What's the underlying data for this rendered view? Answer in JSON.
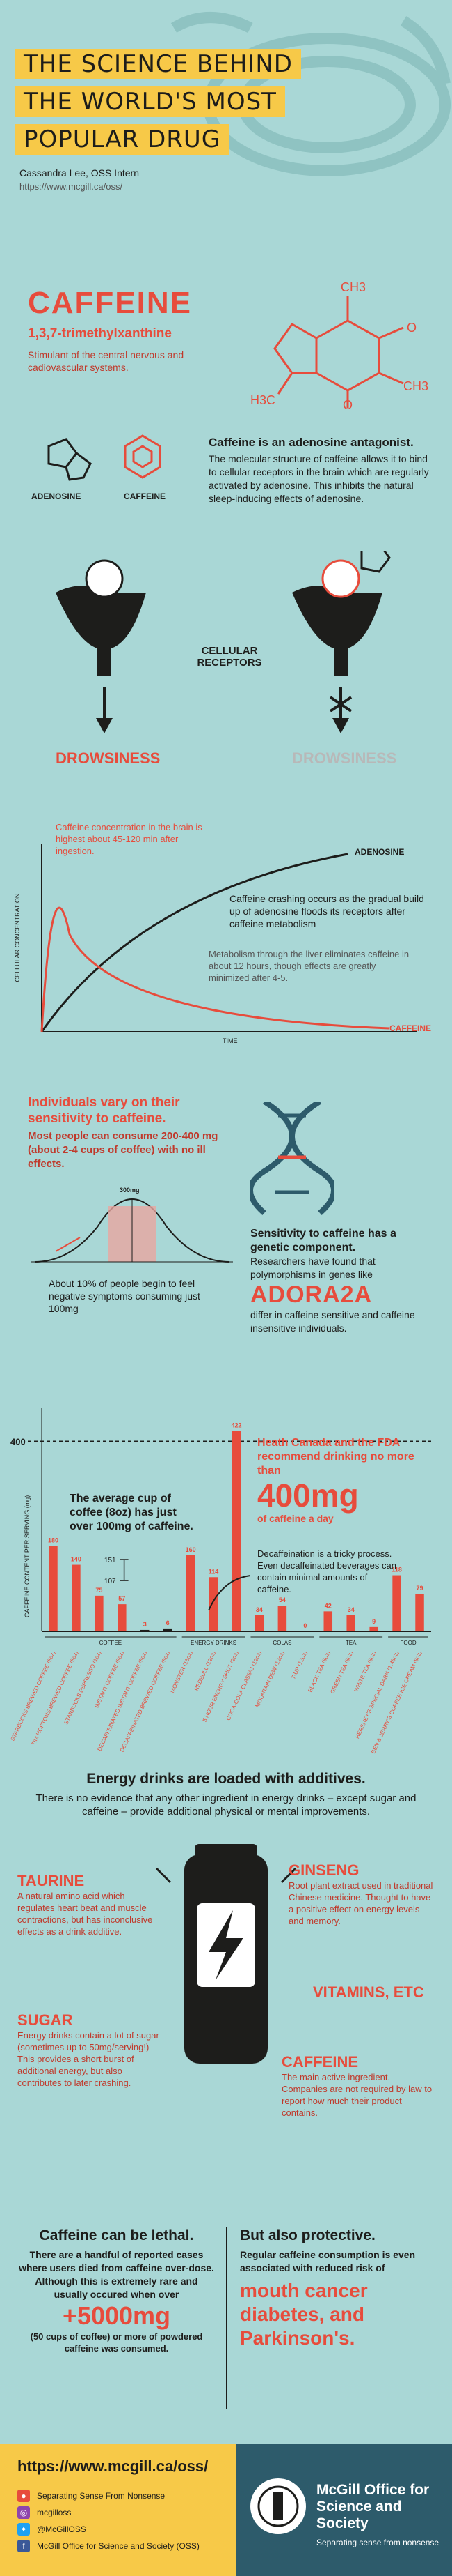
{
  "header": {
    "title_lines": [
      "THE SCIENCE BEHIND",
      "THE WORLD'S MOST",
      "POPULAR DRUG"
    ],
    "author": "Cassandra Lee, OSS Intern",
    "url": "https://www.mcgill.ca/oss/"
  },
  "caffeine_intro": {
    "title": "CAFFEINE",
    "chemical_name": "1,3,7-trimethylxanthine",
    "description": "Stimulant of the central nervous and cadiovascular systems.",
    "molecule_labels": {
      "ch3_top": "CH3",
      "ch3_right": "CH3",
      "h3c_left": "H3C",
      "n": "N",
      "o": "O"
    }
  },
  "antagonist": {
    "adenosine_label": "ADENOSINE",
    "caffeine_label": "CAFFEINE",
    "heading": "Caffeine is an adenosine antagonist.",
    "body": "The molecular structure of caffeine allows it to bind to cellular receptors in the brain which are regularly activated by adenosine. This inhibits the natural sleep-inducing effects of adenosine.",
    "receptors_label": "CELLULAR RECEPTORS",
    "drowsiness_left": "DROWSINESS",
    "drowsiness_right": "DROWSINESS"
  },
  "concentration_chart": {
    "peak_note": "Caffeine concentration in the brain is highest about 45-120 min after ingestion.",
    "crash_note": "Caffeine crashing occurs as the gradual build up of adenosine floods its receptors after caffeine metabolism",
    "metabolism_note": "Metabolism through the liver eliminates caffeine in about 12 hours, though effects are greatly minimized after 4-5.",
    "ylabel": "CELLULAR CONCENTRATION",
    "xlabel": "TIME",
    "series": [
      {
        "name": "ADENOSINE",
        "color": "#1d1d1b"
      },
      {
        "name": "CAFFEINE",
        "color": "#e74c3c"
      }
    ]
  },
  "sensitivity": {
    "heading": "Individuals vary on their sensitivity to caffeine.",
    "body": "Most people can consume 200-400 mg (about 2-4 cups of coffee) with no ill effects.",
    "curve_label": "300mg",
    "low_note": "About 10% of people begin to feel negative symptoms consuming just 100mg",
    "genetic_heading": "Sensitivity to caffeine has a genetic component.",
    "genetic_body": "Researchers have found that polymorphisms in genes like",
    "gene": "ADORA2A",
    "gene_tail": "differ in caffeine sensitive and caffeine insensitive individuals."
  },
  "chart_data": {
    "type": "bar",
    "ylabel": "CAFFEINE CONTENT PER SERVING (mg)",
    "reference_line": 400,
    "ylim": [
      0,
      440
    ],
    "categories": [
      "STARBUCKS BREWED COFFEE (8oz)",
      "TIM HORTONS BREWED COFFEE (8oz)",
      "STARBUCKS ESPRESSO (1oz)",
      "INSTANT COFFEE (8oz)",
      "DECAFFEINATED INSTANT COFFEE (8oz)",
      "DECAFFEINATED BREWED COFFEE (8oz)",
      "MONSTER (16oz)",
      "REDBULL (12oz)",
      "5 HOUR ENERGY SHOT (2oz)",
      "COCA-COLA CLASSIC (12oz)",
      "MOUNTAIN DEW (12oz)",
      "7-UP (12oz)",
      "BLACK TEA (8oz)",
      "GREEN TEA (8oz)",
      "WHITE TEA (8oz)",
      "HERSHEY'S SPECIAL DARK (1.45oz)",
      "BEN & JERRY'S COFFEE ICE CREAM (8oz)"
    ],
    "values": [
      180,
      140,
      75,
      57,
      3,
      6,
      160,
      114,
      422,
      34,
      54,
      0,
      42,
      34,
      9,
      118,
      79
    ],
    "value_labels": [
      "180",
      "140",
      "75",
      "57",
      "3",
      "6",
      "160",
      "114",
      "422",
      "34",
      "54",
      "0",
      "42",
      "34",
      "9",
      "118",
      "79"
    ],
    "groups": [
      {
        "name": "COFFEE",
        "from": 0,
        "to": 5
      },
      {
        "name": "ENERGY DRINKS",
        "from": 6,
        "to": 8
      },
      {
        "name": "COLAS",
        "from": 9,
        "to": 11
      },
      {
        "name": "TEA",
        "from": 12,
        "to": 14
      },
      {
        "name": "FOOD",
        "from": 15,
        "to": 16
      }
    ],
    "average_cup": {
      "label": "The average cup of coffee (8oz) has just over 100mg of caffeine.",
      "low": 107,
      "high": 151
    },
    "health_canada_note": "Heath Canada and the FDA recommend drinking no more than",
    "limit": "400mg",
    "limit_suffix": "of caffeine a day",
    "decaf_note": "Decaffeination is a tricky process. Even decaffeinated beverages can contain minimal amounts of caffeine.",
    "y_tick_label": "400"
  },
  "energy": {
    "heading": "Energy drinks are loaded with additives.",
    "body": "There is no evidence that any other ingredient in energy drinks – except sugar and caffeine – provide additional physical or mental improvements.",
    "taurine_title": "TAURINE",
    "taurine_body": "A natural amino acid which regulates heart beat and muscle contractions, but has inconclusive effects as a drink additive.",
    "ginseng_title": "GINSENG",
    "ginseng_body": "Root plant extract used in traditional Chinese medicine. Thought to have a positive effect on energy levels and memory.",
    "vitamins_title": "VITAMINS, ETC",
    "sugar_title": "SUGAR",
    "sugar_body": "Energy drinks contain a lot of sugar (sometimes up to 50mg/serving!) This provides a short burst of additional energy, but also contributes to later crashing.",
    "caffeine_title": "CAFFEINE",
    "caffeine_body": "The main active ingredient. Companies are not required by law to report how much their product contains."
  },
  "lethal": {
    "heading": "Caffeine can be lethal.",
    "body": "There are a handful of reported cases where users died from caffeine over-dose.  Although this is extremely rare and usually occured when over",
    "amount": "+5000mg",
    "tail": "(50 cups of coffee) or more of powdered caffeine was consumed."
  },
  "protective": {
    "heading": "But also protective.",
    "body": "Regular caffeine consumption is even associated with reduced risk of",
    "items": [
      "mouth cancer",
      "diabetes, and",
      "Parkinson's."
    ]
  },
  "footer": {
    "url": "https://www.mcgill.ca/oss/",
    "links": [
      "Separating Sense From Nonsense",
      "mcgilloss",
      "@McGillOSS",
      "McGill Office for Science and Society (OSS)"
    ],
    "org_name": "McGill Office for Science and Society",
    "tagline": "Separating sense from nonsense"
  }
}
